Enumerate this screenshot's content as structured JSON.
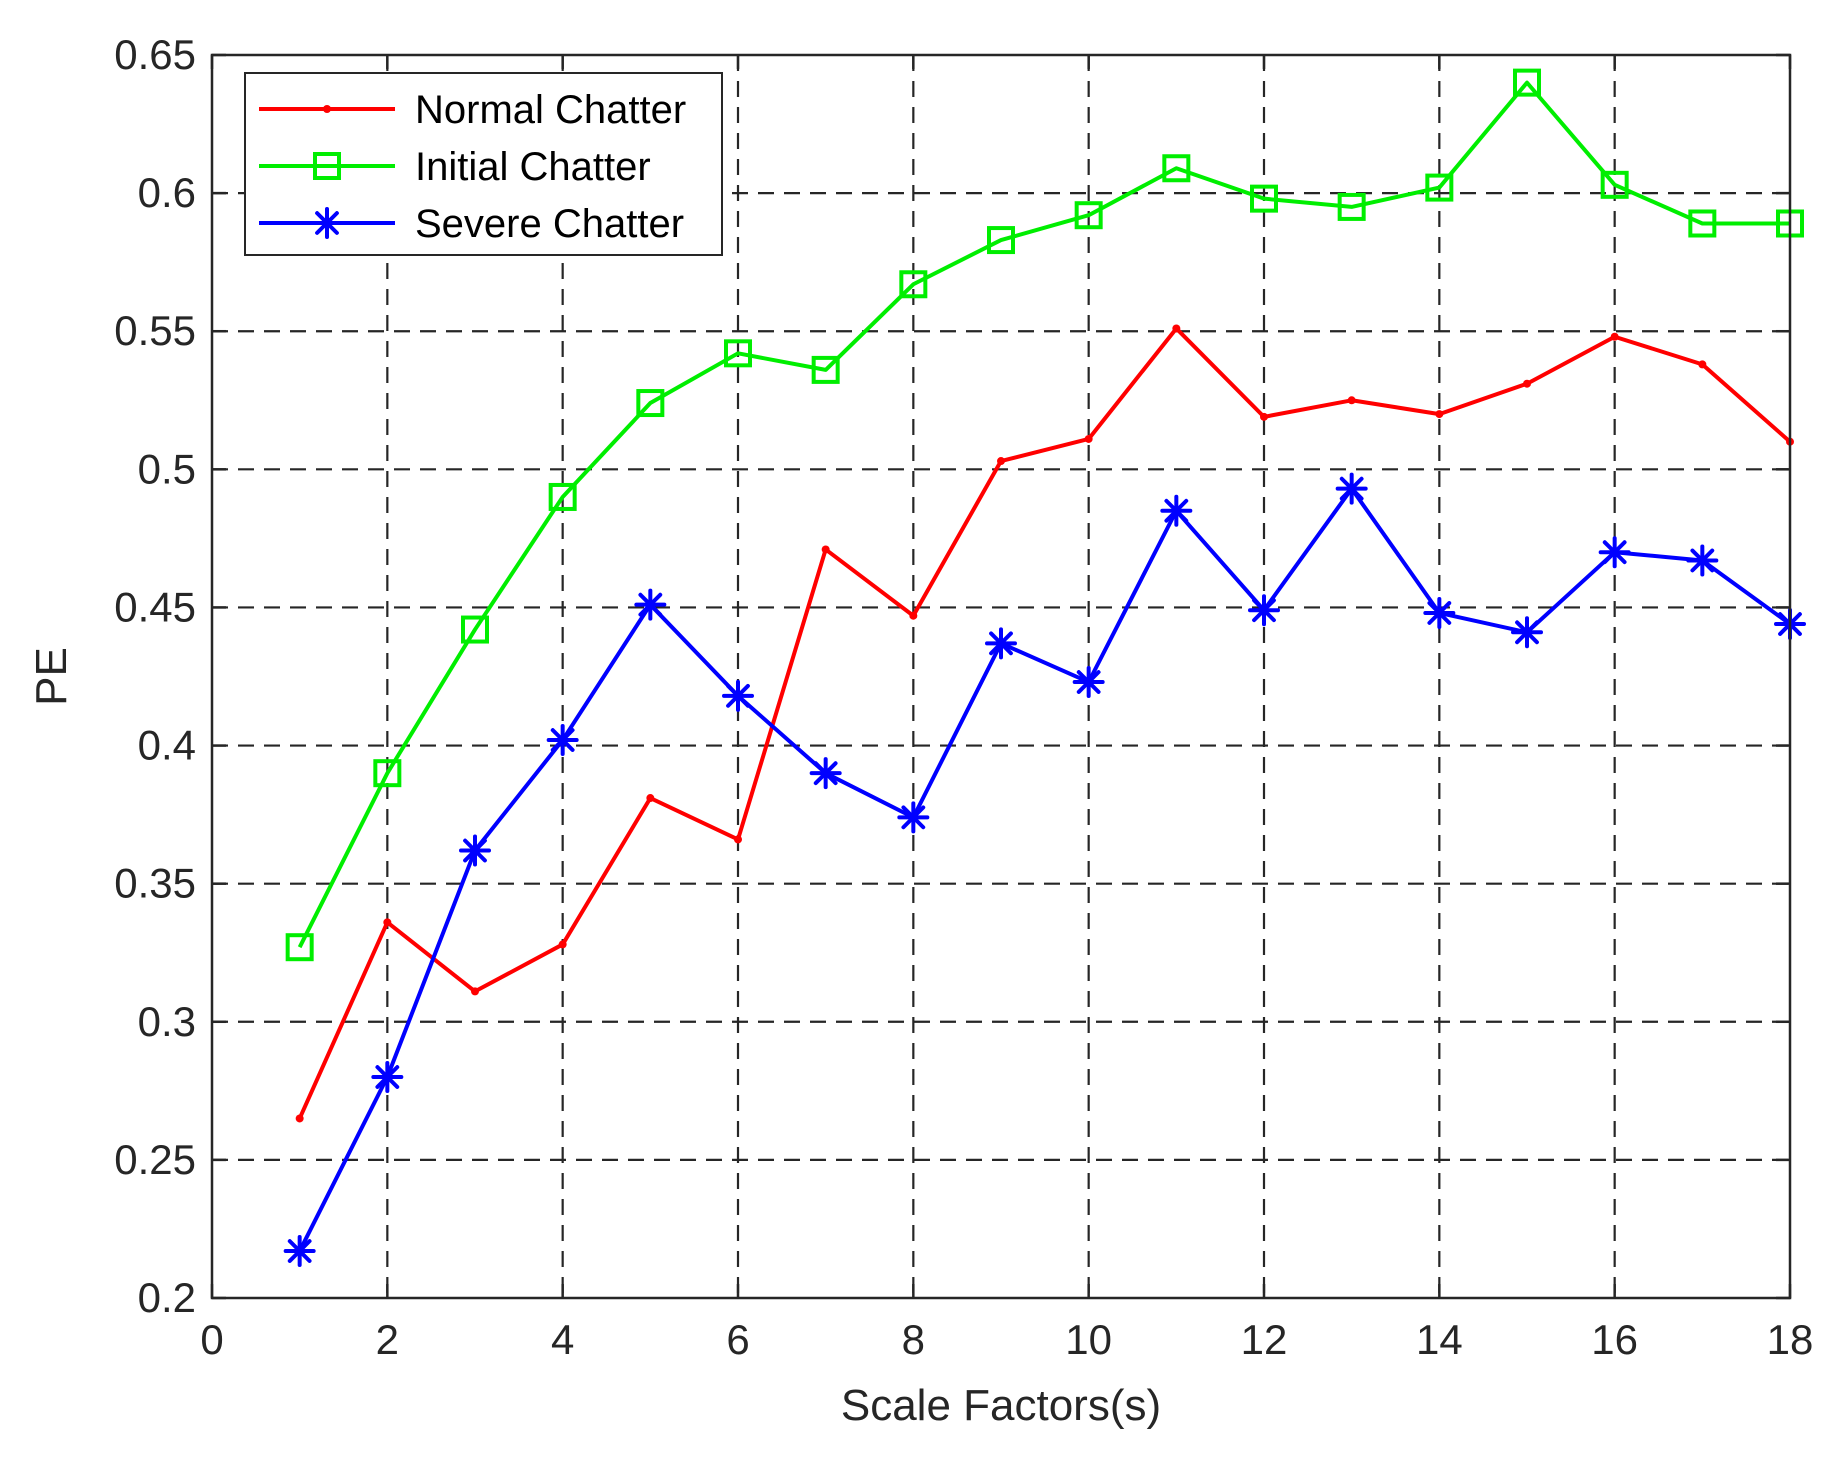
{
  "chart_data": {
    "type": "line",
    "title": "",
    "xlabel": "Scale Factors(s)",
    "ylabel": "PE",
    "xlim": [
      0,
      18
    ],
    "ylim": [
      0.2,
      0.65
    ],
    "xticks": [
      0,
      2,
      4,
      6,
      8,
      10,
      12,
      14,
      16,
      18
    ],
    "yticks": [
      0.2,
      0.25,
      0.3,
      0.35,
      0.4,
      0.45,
      0.5,
      0.55,
      0.6,
      0.65
    ],
    "xtick_labels": [
      "0",
      "2",
      "4",
      "6",
      "8",
      "10",
      "12",
      "14",
      "16",
      "18"
    ],
    "ytick_labels": [
      "0.2",
      "0.25",
      "0.3",
      "0.35",
      "0.4",
      "0.45",
      "0.5",
      "0.55",
      "0.6",
      "0.65"
    ],
    "grid": true,
    "legend_position": "top-left",
    "x": [
      1,
      2,
      3,
      4,
      5,
      6,
      7,
      8,
      9,
      10,
      11,
      12,
      13,
      14,
      15,
      16,
      17,
      18
    ],
    "series": [
      {
        "name": "Normal Chatter",
        "color": "#ff0000",
        "marker": "dot",
        "values": [
          0.265,
          0.336,
          0.311,
          0.328,
          0.381,
          0.366,
          0.471,
          0.447,
          0.503,
          0.511,
          0.551,
          0.519,
          0.525,
          0.52,
          0.531,
          0.548,
          0.538,
          0.51
        ]
      },
      {
        "name": "Initial Chatter",
        "color": "#00ee00",
        "marker": "square",
        "values": [
          0.327,
          0.39,
          0.442,
          0.49,
          0.524,
          0.542,
          0.536,
          0.567,
          0.583,
          0.592,
          0.609,
          0.598,
          0.595,
          0.602,
          0.64,
          0.603,
          0.589,
          0.589
        ]
      },
      {
        "name": "Severe Chatter",
        "color": "#0000ff",
        "marker": "star",
        "values": [
          0.217,
          0.28,
          0.362,
          0.402,
          0.451,
          0.418,
          0.39,
          0.374,
          0.437,
          0.423,
          0.485,
          0.449,
          0.493,
          0.448,
          0.441,
          0.47,
          0.467,
          0.444
        ]
      }
    ]
  }
}
